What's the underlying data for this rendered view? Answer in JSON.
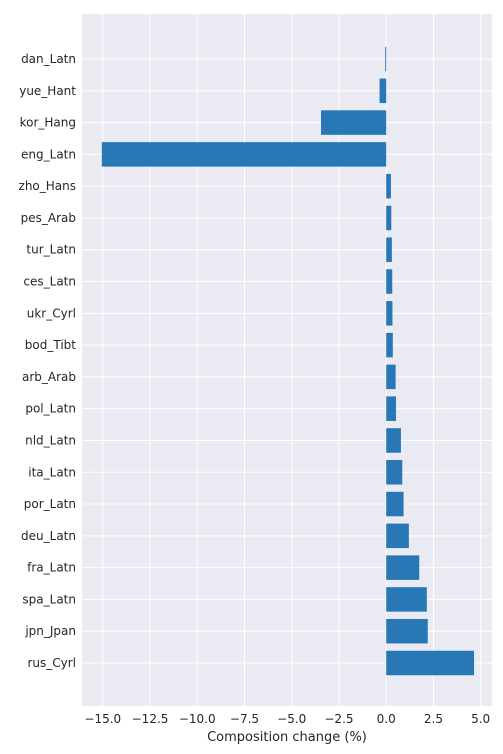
{
  "chart_data": {
    "type": "bar",
    "orientation": "horizontal",
    "title": "",
    "xlabel": "Composition change (%)",
    "ylabel": "",
    "xlim": [
      -16.1,
      5.6
    ],
    "xticks": [
      -15.0,
      -12.5,
      -10.0,
      -7.5,
      -5.0,
      -2.5,
      0.0,
      2.5,
      5.0
    ],
    "xtick_labels": [
      "−15.0",
      "−12.5",
      "−10.0",
      "−7.5",
      "−5.0",
      "−2.5",
      "0.0",
      "2.5",
      "5.0"
    ],
    "grid": true,
    "bar_color": "#2878b5",
    "background_color": "#eaeaf2",
    "categories": [
      "dan_Latn",
      "yue_Hant",
      "kor_Hang",
      "eng_Latn",
      "zho_Hans",
      "pes_Arab",
      "tur_Latn",
      "ces_Latn",
      "ukr_Cyrl",
      "bod_Tibt",
      "arb_Arab",
      "pol_Latn",
      "nld_Latn",
      "ita_Latn",
      "por_Latn",
      "deu_Latn",
      "fra_Latn",
      "spa_Latn",
      "jpn_Jpan",
      "rus_Cyrl"
    ],
    "values": [
      -0.05,
      -0.35,
      -3.45,
      -15.05,
      0.25,
      0.27,
      0.3,
      0.32,
      0.33,
      0.35,
      0.5,
      0.52,
      0.78,
      0.85,
      0.92,
      1.2,
      1.75,
      2.15,
      2.2,
      4.65
    ]
  }
}
